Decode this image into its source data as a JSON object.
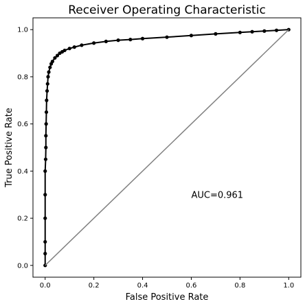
{
  "chart_data": {
    "type": "line",
    "title": "Receiver Operating Characteristic",
    "xlabel": "False Positive Rate",
    "ylabel": "True Positive Rate",
    "xlim": [
      -0.05,
      1.05
    ],
    "ylim": [
      -0.05,
      1.05
    ],
    "xticks": [
      "0.0",
      "0.2",
      "0.4",
      "0.6",
      "0.8",
      "1.0"
    ],
    "yticks": [
      "0.0",
      "0.2",
      "0.4",
      "0.6",
      "0.8",
      "1.0"
    ],
    "grid": false,
    "legend": "none",
    "annotation": {
      "text": "AUC=0.961",
      "x": 0.6,
      "y": 0.3
    },
    "series": [
      {
        "role": "roc-curve",
        "color": "#000000",
        "marker": "circle",
        "x": [
          0.0,
          0.0,
          0.0,
          0.0,
          0.0,
          0.0,
          0.002,
          0.003,
          0.003,
          0.004,
          0.005,
          0.006,
          0.008,
          0.01,
          0.012,
          0.015,
          0.02,
          0.025,
          0.03,
          0.04,
          0.05,
          0.06,
          0.07,
          0.08,
          0.1,
          0.12,
          0.15,
          0.2,
          0.25,
          0.3,
          0.35,
          0.4,
          0.5,
          0.6,
          0.7,
          0.8,
          0.85,
          0.9,
          0.95,
          1.0
        ],
        "y": [
          0.0,
          0.05,
          0.1,
          0.2,
          0.3,
          0.4,
          0.45,
          0.5,
          0.55,
          0.6,
          0.65,
          0.7,
          0.74,
          0.77,
          0.8,
          0.82,
          0.84,
          0.855,
          0.865,
          0.88,
          0.89,
          0.9,
          0.906,
          0.912,
          0.92,
          0.926,
          0.934,
          0.943,
          0.95,
          0.955,
          0.958,
          0.962,
          0.968,
          0.975,
          0.982,
          0.988,
          0.991,
          0.994,
          0.997,
          1.0
        ]
      },
      {
        "role": "diagonal-reference",
        "color": "#808080",
        "x": [
          0.0,
          1.0
        ],
        "y": [
          0.0,
          1.0
        ]
      }
    ]
  }
}
